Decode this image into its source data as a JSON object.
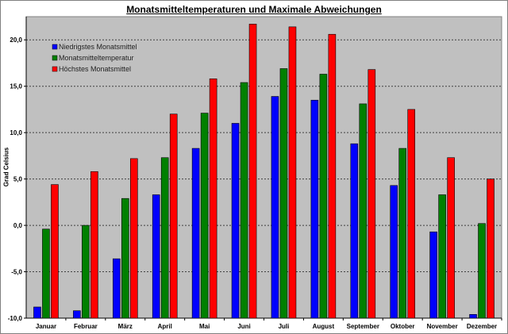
{
  "chart_data": {
    "type": "bar",
    "title": "Monatsmitteltemperaturen und Maximale Abweichungen",
    "xlabel": "",
    "ylabel": "Grad Celsius",
    "ylim": [
      -10,
      22.5
    ],
    "yticks": [
      "-10,0",
      "-5,0",
      "0,0",
      "5,0",
      "10,0",
      "15,0",
      "20,0"
    ],
    "grid": true,
    "legend_position": "top-left",
    "background": "#c0c0c0",
    "categories": [
      "Januar",
      "Februar",
      "März",
      "April",
      "Mai",
      "Juni",
      "Juli",
      "August",
      "September",
      "Oktober",
      "November",
      "Dezember"
    ],
    "series": [
      {
        "name": "Niedrigstes Monatsmittel",
        "color": "#0000ff",
        "values": [
          -8.8,
          -9.2,
          -3.6,
          3.3,
          8.3,
          11.0,
          13.9,
          13.5,
          8.8,
          4.3,
          -0.7,
          -9.6
        ]
      },
      {
        "name": "Monatsmitteltemperatur",
        "color": "#008000",
        "values": [
          -0.4,
          0.0,
          2.9,
          7.3,
          12.1,
          15.4,
          16.9,
          16.3,
          13.1,
          8.3,
          3.3,
          0.2
        ]
      },
      {
        "name": "Höchstes Monatsmittel",
        "color": "#ff0000",
        "values": [
          4.4,
          5.8,
          7.2,
          12.0,
          15.8,
          21.7,
          21.4,
          20.6,
          16.8,
          12.5,
          7.3,
          5.0
        ]
      }
    ]
  }
}
